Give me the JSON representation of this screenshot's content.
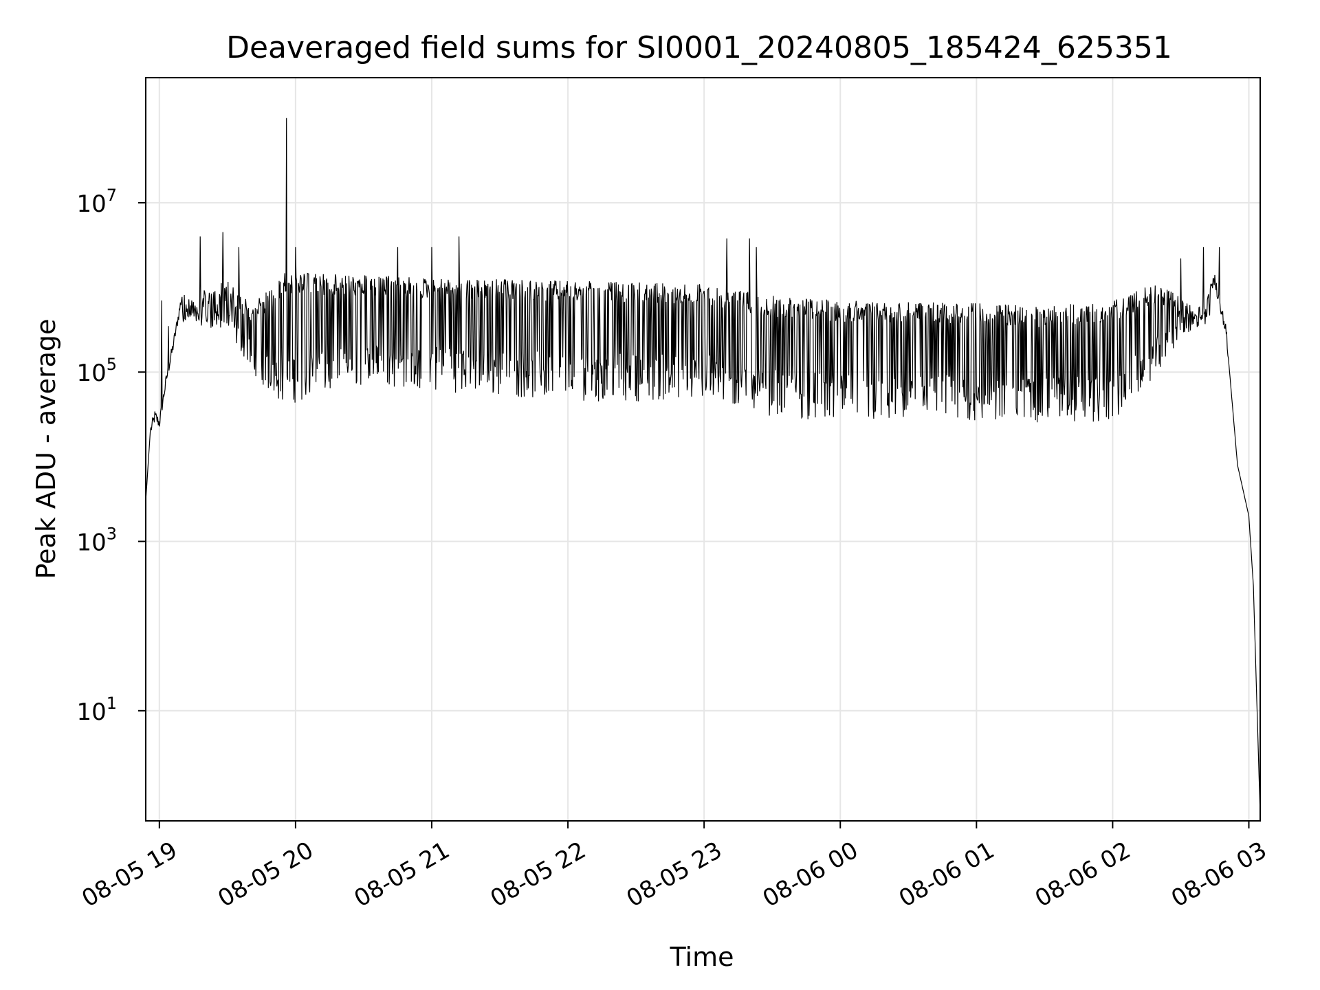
{
  "chart_data": {
    "type": "line",
    "title": "Deaveraged field sums for SI0001_20240805_185424_625351",
    "xlabel": "Time",
    "ylabel": "Peak ADU - average",
    "x_scale": "time",
    "y_scale": "log",
    "xlim": [
      "2024-08-05 18:54",
      "2024-08-06 03:05"
    ],
    "ylim": [
      0.5,
      300000000
    ],
    "grid": true,
    "line_color": "#000000",
    "grid_color": "#e6e6e6",
    "x_ticks": [
      {
        "value": "2024-08-05 19:00",
        "label": "08-05 19"
      },
      {
        "value": "2024-08-05 20:00",
        "label": "08-05 20"
      },
      {
        "value": "2024-08-05 21:00",
        "label": "08-05 21"
      },
      {
        "value": "2024-08-05 22:00",
        "label": "08-05 22"
      },
      {
        "value": "2024-08-05 23:00",
        "label": "08-05 23"
      },
      {
        "value": "2024-08-06 00:00",
        "label": "08-06 00"
      },
      {
        "value": "2024-08-06 01:00",
        "label": "08-06 01"
      },
      {
        "value": "2024-08-06 02:00",
        "label": "08-06 02"
      },
      {
        "value": "2024-08-06 03:00",
        "label": "08-06 03"
      }
    ],
    "y_ticks": [
      {
        "value": 10,
        "base": "10",
        "exp": "1"
      },
      {
        "value": 1000,
        "base": "10",
        "exp": "3"
      },
      {
        "value": 100000,
        "base": "10",
        "exp": "5"
      },
      {
        "value": 10000000,
        "base": "10",
        "exp": "7"
      }
    ],
    "series": [
      {
        "points": [
          [
            "2024-08-05 18:54",
            3000
          ],
          [
            "2024-08-05 18:56",
            20000
          ],
          [
            "2024-08-05 18:58",
            30000
          ],
          [
            "2024-08-05 19:00",
            25000
          ],
          [
            "2024-08-05 19:03",
            80000
          ],
          [
            "2024-08-05 19:06",
            200000
          ],
          [
            "2024-08-05 19:10",
            800000
          ],
          [
            "2024-08-05 19:20",
            1000000
          ],
          [
            "2024-08-05 19:30",
            1200000
          ],
          [
            "2024-08-05 19:40",
            700000
          ],
          [
            "2024-08-05 19:50",
            1000000
          ],
          [
            "2024-08-05 19:55",
            1500000
          ],
          [
            "2024-08-05 20:30",
            1400000
          ],
          [
            "2024-08-05 21:00",
            1300000
          ],
          [
            "2024-08-05 22:00",
            1200000
          ],
          [
            "2024-08-05 23:00",
            1100000
          ],
          [
            "2024-08-05 23:30",
            800000
          ],
          [
            "2024-08-06 00:00",
            700000
          ],
          [
            "2024-08-06 01:00",
            650000
          ],
          [
            "2024-08-06 01:30",
            600000
          ],
          [
            "2024-08-06 02:00",
            700000
          ],
          [
            "2024-08-06 02:20",
            1200000
          ],
          [
            "2024-08-06 02:35",
            600000
          ],
          [
            "2024-08-06 02:45",
            1200000
          ],
          [
            "2024-08-06 02:50",
            300000
          ],
          [
            "2024-08-06 02:55",
            8000
          ],
          [
            "2024-08-06 03:00",
            2000
          ],
          [
            "2024-08-06 03:02",
            300
          ],
          [
            "2024-08-06 03:05",
            0.6
          ]
        ],
        "lower_envelope": [
          [
            "2024-08-05 19:10",
            400000
          ],
          [
            "2024-08-05 19:30",
            300000
          ],
          [
            "2024-08-05 19:45",
            70000
          ],
          [
            "2024-08-05 19:55",
            40000
          ],
          [
            "2024-08-05 20:30",
            70000
          ],
          [
            "2024-08-05 21:00",
            60000
          ],
          [
            "2024-08-05 22:00",
            45000
          ],
          [
            "2024-08-05 23:00",
            45000
          ],
          [
            "2024-08-05 23:30",
            30000
          ],
          [
            "2024-08-06 00:00",
            25000
          ],
          [
            "2024-08-06 01:00",
            25000
          ],
          [
            "2024-08-06 02:00",
            25000
          ],
          [
            "2024-08-06 02:20",
            100000
          ],
          [
            "2024-08-06 02:30",
            250000
          ],
          [
            "2024-08-06 02:45",
            400000
          ]
        ],
        "spikes": [
          [
            "2024-08-05 19:01",
            700000
          ],
          [
            "2024-08-05 19:04",
            350000
          ],
          [
            "2024-08-05 19:18",
            4000000
          ],
          [
            "2024-08-05 19:28",
            4500000
          ],
          [
            "2024-08-05 19:35",
            3000000
          ],
          [
            "2024-08-05 19:56",
            100000000
          ],
          [
            "2024-08-05 20:00",
            3000000
          ],
          [
            "2024-08-05 20:45",
            3000000
          ],
          [
            "2024-08-05 21:00",
            3000000
          ],
          [
            "2024-08-05 21:12",
            4000000
          ],
          [
            "2024-08-05 23:10",
            3800000
          ],
          [
            "2024-08-05 23:20",
            3800000
          ],
          [
            "2024-08-05 23:23",
            3000000
          ],
          [
            "2024-08-06 02:30",
            2200000
          ],
          [
            "2024-08-06 02:40",
            3000000
          ],
          [
            "2024-08-06 02:47",
            3000000
          ]
        ]
      }
    ]
  }
}
